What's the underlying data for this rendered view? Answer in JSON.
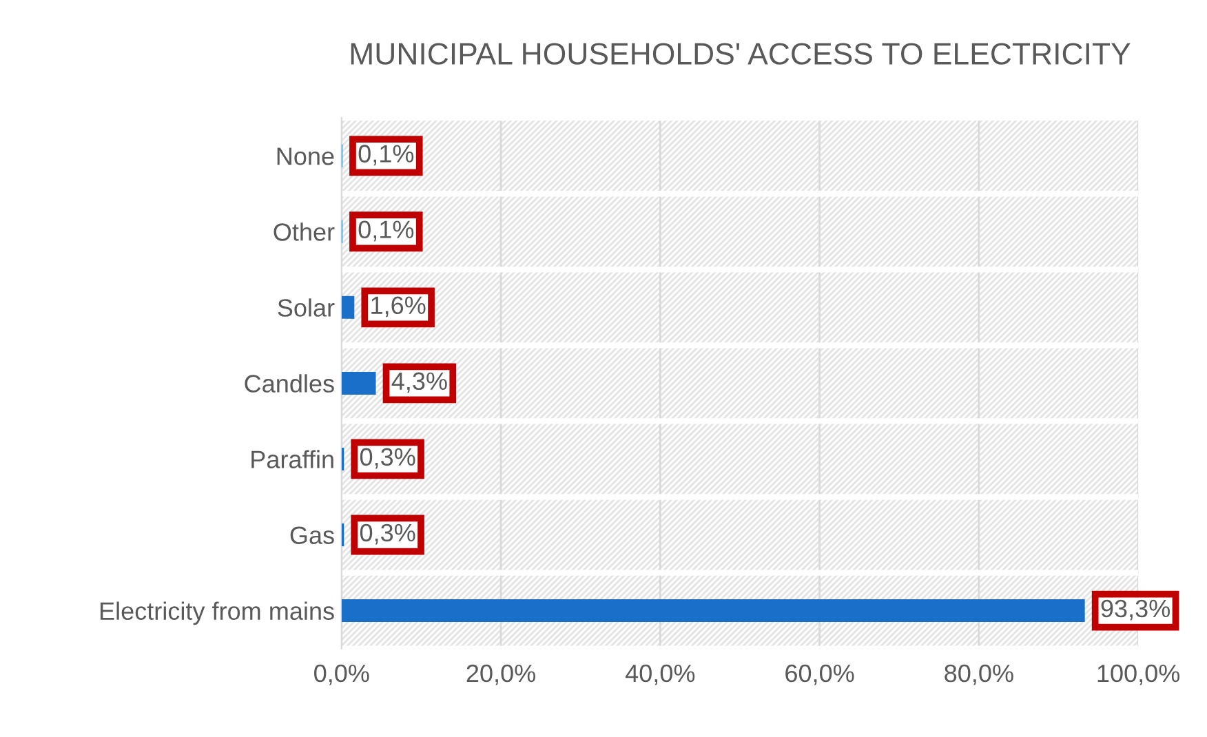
{
  "chart_data": {
    "type": "bar",
    "orientation": "horizontal",
    "title": "MUNICIPAL HOUSEHOLDS' ACCESS TO ELECTRICITY",
    "categories": [
      "None",
      "Other",
      "Solar",
      "Candles",
      "Paraffin",
      "Gas",
      "Electricity from mains"
    ],
    "values": [
      0.1,
      0.1,
      1.6,
      4.3,
      0.3,
      0.3,
      93.3
    ],
    "value_labels": [
      "0,1%",
      "0,1%",
      "1,6%",
      "4,3%",
      "0,3%",
      "0,3%",
      "93,3%"
    ],
    "color": "#1a6fc9",
    "xlim": [
      0,
      100
    ],
    "xticks": [
      {
        "value": 0,
        "label": "0,0%"
      },
      {
        "value": 20,
        "label": "20,0%"
      },
      {
        "value": 40,
        "label": "40,0%"
      },
      {
        "value": 60,
        "label": "60,0%"
      },
      {
        "value": 80,
        "label": "80,0%"
      },
      {
        "value": 100,
        "label": "100,0%"
      }
    ],
    "grid": "x"
  }
}
